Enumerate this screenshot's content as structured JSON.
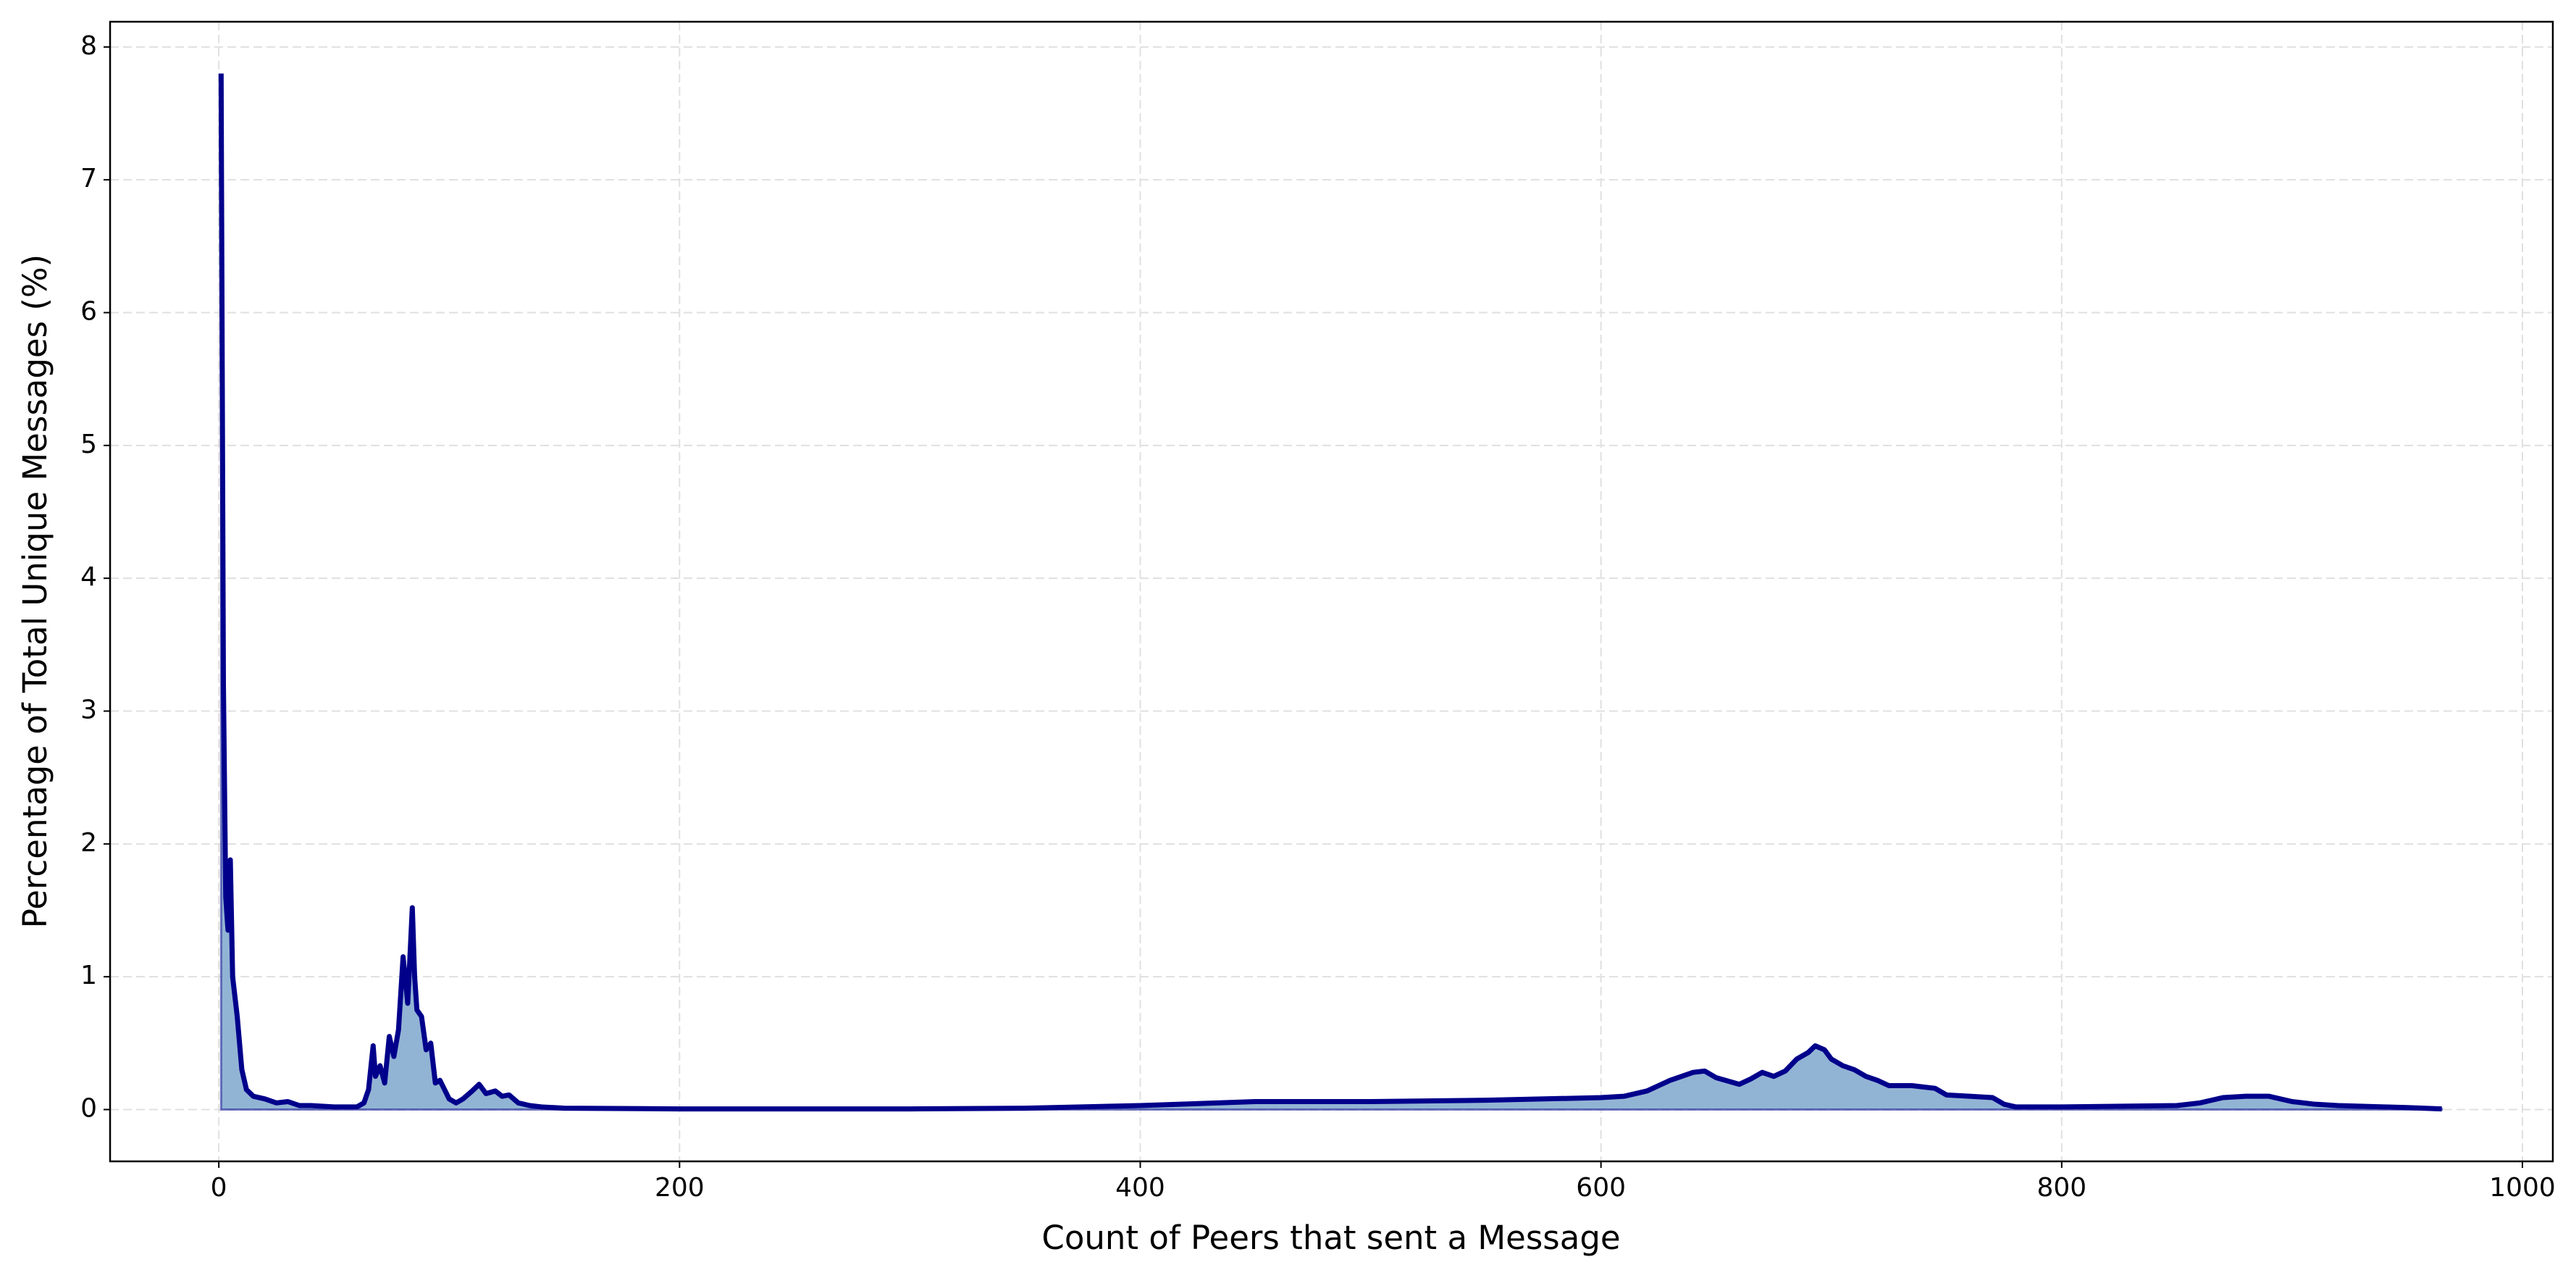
{
  "chart_data": {
    "type": "area",
    "x_label": "Count of Peers that sent a Message",
    "y_label": "Percentage of Total Unique Messages (%)",
    "x": [
      1,
      2,
      3,
      4,
      5,
      6,
      8,
      10,
      12,
      15,
      20,
      25,
      30,
      35,
      40,
      50,
      60,
      63,
      65,
      67,
      68,
      70,
      72,
      74,
      76,
      78,
      80,
      82,
      84,
      85,
      86,
      88,
      90,
      92,
      94,
      96,
      98,
      100,
      103,
      106,
      110,
      113,
      116,
      120,
      123,
      126,
      130,
      135,
      140,
      150,
      200,
      300,
      350,
      400,
      450,
      500,
      550,
      600,
      610,
      620,
      630,
      640,
      645,
      650,
      660,
      665,
      670,
      675,
      680,
      685,
      690,
      693,
      697,
      700,
      705,
      710,
      715,
      720,
      725,
      735,
      745,
      750,
      760,
      770,
      775,
      780,
      800,
      850,
      860,
      870,
      880,
      890,
      900,
      910,
      920,
      940,
      950,
      965
    ],
    "values": [
      7.8,
      3.2,
      1.6,
      1.35,
      1.88,
      1.0,
      0.7,
      0.3,
      0.15,
      0.1,
      0.08,
      0.05,
      0.06,
      0.03,
      0.03,
      0.02,
      0.02,
      0.05,
      0.15,
      0.48,
      0.25,
      0.33,
      0.2,
      0.55,
      0.4,
      0.6,
      1.15,
      0.8,
      1.52,
      1.0,
      0.75,
      0.7,
      0.45,
      0.5,
      0.2,
      0.22,
      0.15,
      0.08,
      0.05,
      0.08,
      0.14,
      0.19,
      0.12,
      0.14,
      0.1,
      0.11,
      0.05,
      0.03,
      0.02,
      0.01,
      0.005,
      0.005,
      0.01,
      0.03,
      0.06,
      0.06,
      0.07,
      0.09,
      0.1,
      0.14,
      0.22,
      0.28,
      0.29,
      0.24,
      0.19,
      0.23,
      0.28,
      0.25,
      0.29,
      0.38,
      0.43,
      0.48,
      0.45,
      0.38,
      0.33,
      0.3,
      0.25,
      0.22,
      0.18,
      0.18,
      0.16,
      0.11,
      0.1,
      0.09,
      0.04,
      0.02,
      0.02,
      0.03,
      0.05,
      0.09,
      0.1,
      0.1,
      0.06,
      0.04,
      0.03,
      0.02,
      0.015,
      0.005
    ],
    "color": "#00008b",
    "fill_color": "#92b4d4",
    "xlim": [
      -47.2,
      1013.2
    ],
    "ylim": [
      -0.39,
      8.19
    ],
    "xticks": [
      0,
      200,
      400,
      600,
      800,
      1000
    ],
    "yticks": [
      0,
      1,
      2,
      3,
      4,
      5,
      6,
      7,
      8
    ],
    "grid": true
  }
}
